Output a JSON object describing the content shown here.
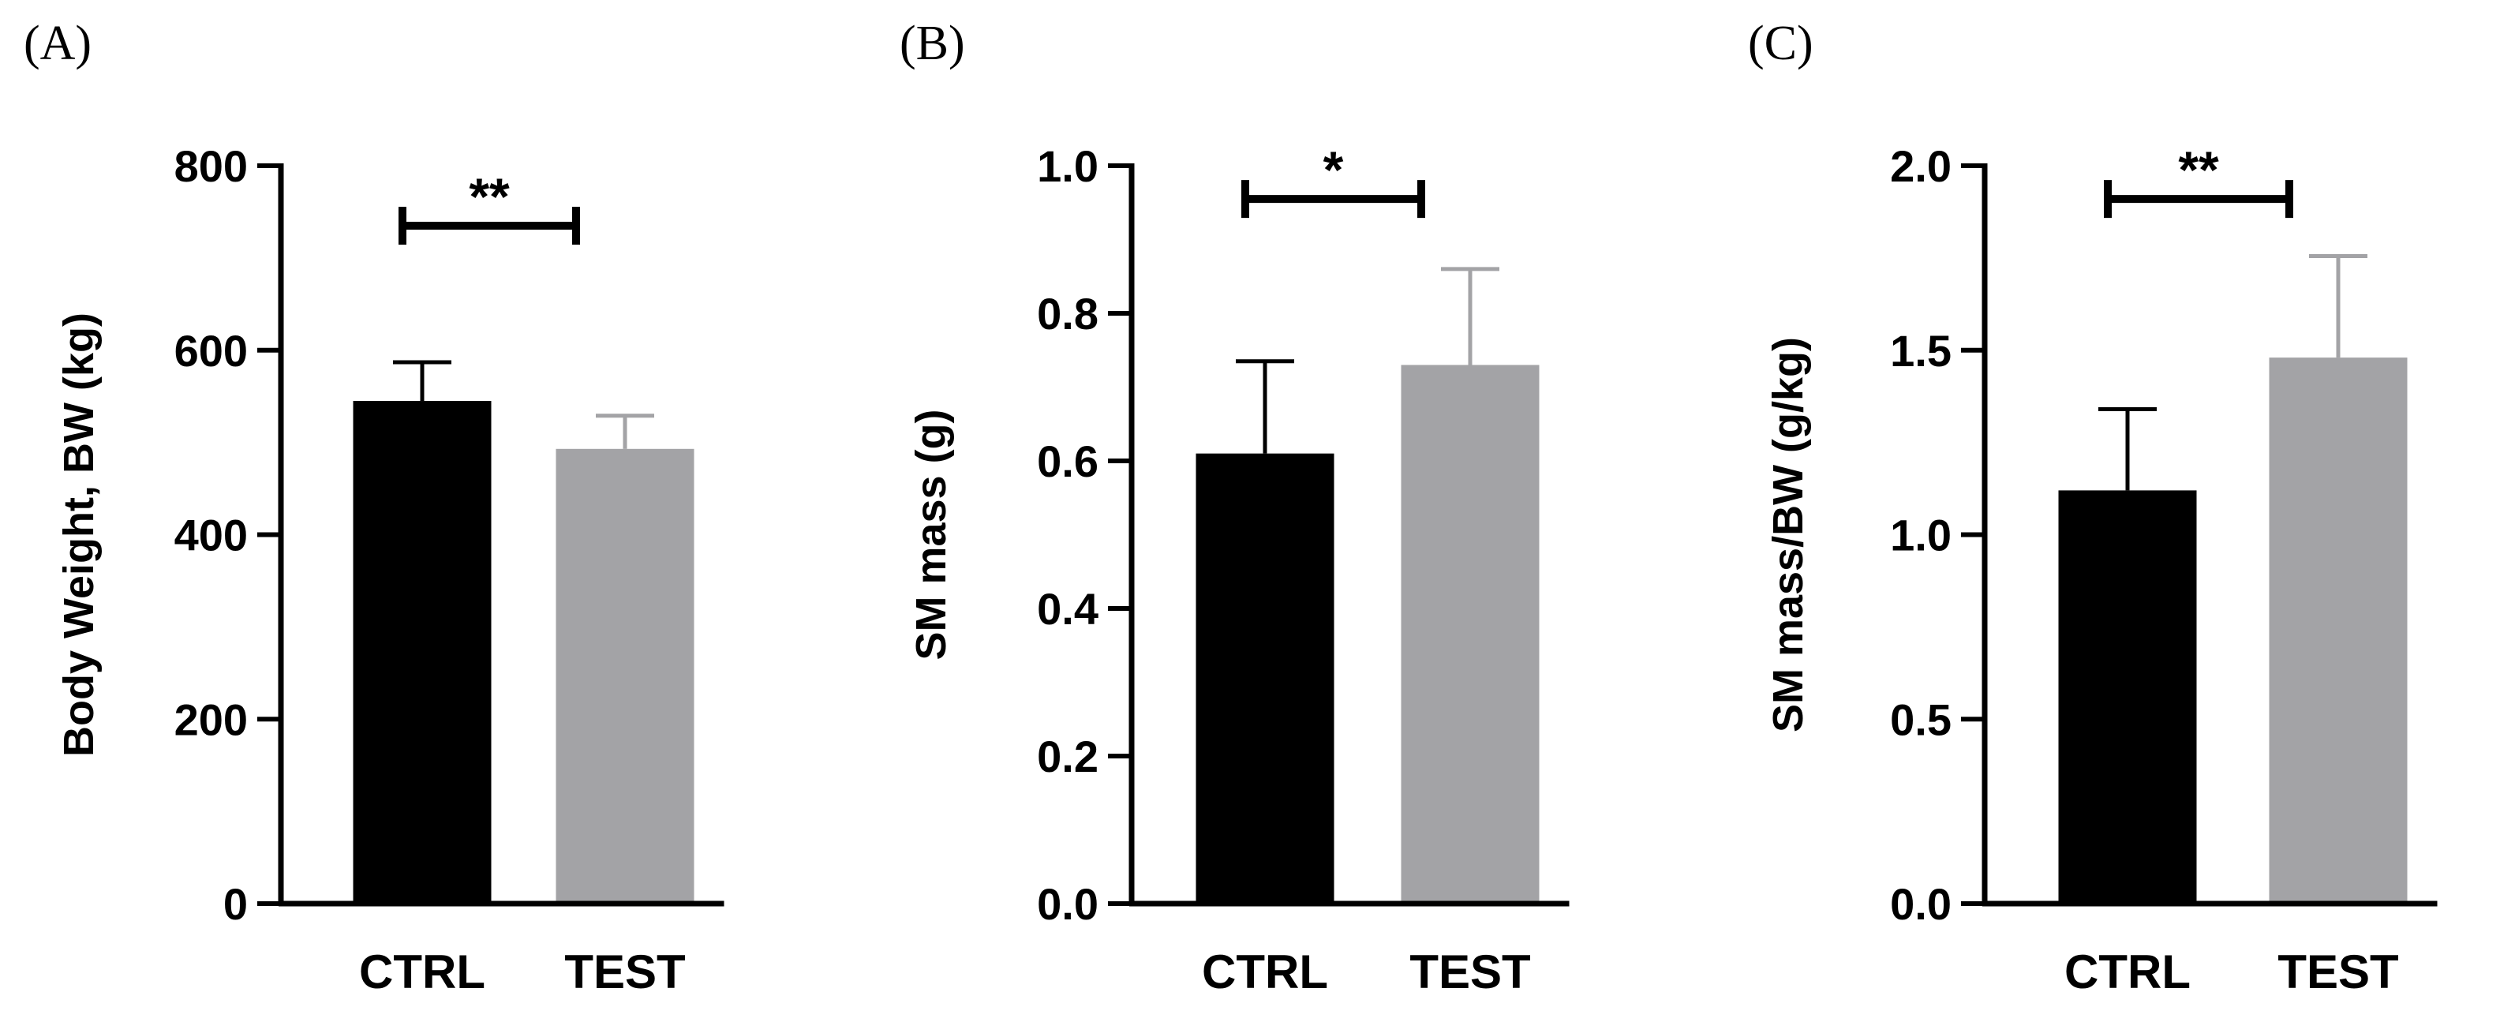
{
  "chart_data": [
    {
      "type": "bar",
      "panel": "(A)",
      "categories": [
        "CTRL",
        "TEST"
      ],
      "values": [
        545,
        493
      ],
      "errors": [
        42,
        36
      ],
      "colors": [
        "#000000",
        "#a3a3a6"
      ],
      "ylabel": "Body Weight, BW (kg)",
      "ylim": [
        0,
        800
      ],
      "yticks": [
        0,
        200,
        400,
        600,
        800
      ],
      "ytick_labels": [
        "0",
        "200",
        "400",
        "600",
        "800"
      ],
      "significance": {
        "label": "**",
        "level": 735
      }
    },
    {
      "type": "bar",
      "panel": "(B)",
      "categories": [
        "CTRL",
        "TEST"
      ],
      "values": [
        0.61,
        0.73
      ],
      "errors": [
        0.125,
        0.13
      ],
      "colors": [
        "#000000",
        "#a3a3a6"
      ],
      "ylabel": "SM mass (g)",
      "ylim": [
        0,
        1.0
      ],
      "yticks": [
        0,
        0.2,
        0.4,
        0.6,
        0.8,
        1.0
      ],
      "ytick_labels": [
        "0.0",
        "0.2",
        "0.4",
        "0.6",
        "0.8",
        "1.0"
      ],
      "significance": {
        "label": "*",
        "level": 0.955
      }
    },
    {
      "type": "bar",
      "panel": "(C)",
      "categories": [
        "CTRL",
        "TEST"
      ],
      "values": [
        1.12,
        1.48
      ],
      "errors": [
        0.22,
        0.275
      ],
      "colors": [
        "#000000",
        "#a3a3a6"
      ],
      "ylabel": "SM mass/BW (g/kg)",
      "ylim": [
        0,
        2.0
      ],
      "yticks": [
        0,
        0.5,
        1.0,
        1.5,
        2.0
      ],
      "ytick_labels": [
        "0.0",
        "0.5",
        "1.0",
        "1.5",
        "2.0"
      ],
      "significance": {
        "label": "**",
        "level": 1.91
      }
    }
  ]
}
